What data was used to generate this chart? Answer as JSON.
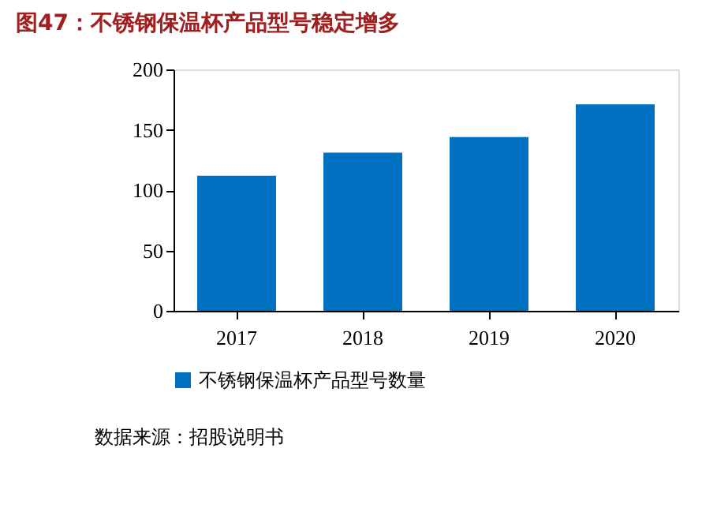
{
  "chart_data": {
    "type": "bar",
    "title": "图47：不锈钢保温杯产品型号稳定增多",
    "categories": [
      "2017",
      "2018",
      "2019",
      "2020"
    ],
    "series": [
      {
        "name": "不锈钢保温杯产品型号数量",
        "color": "#0070c0",
        "values": [
          112,
          131,
          144,
          171
        ]
      }
    ],
    "ylim": [
      0,
      200
    ],
    "yticks": [
      0,
      50,
      100,
      150,
      200
    ],
    "grid": false,
    "legend": "bottom",
    "annotations": [
      "数据来源：招股说明书"
    ]
  }
}
